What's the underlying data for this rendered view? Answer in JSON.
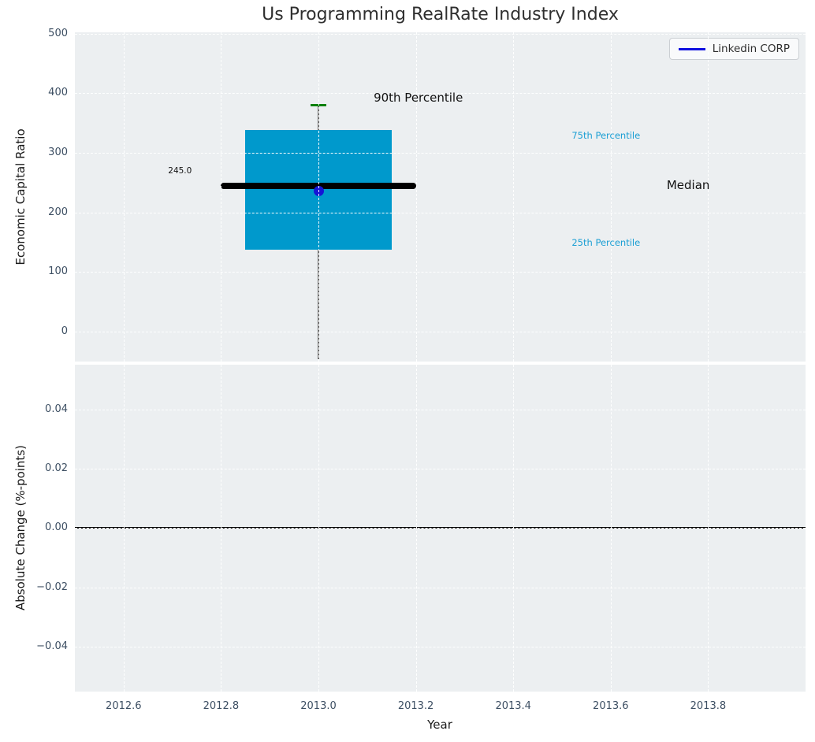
{
  "figure": {
    "background": "#ffffff",
    "plot_background": "#eceff1",
    "grid_color": "#ffffff",
    "tick_color": "#3d4f63"
  },
  "legend": {
    "label": "Linkedin CORP",
    "line_color": "#0f0fe0",
    "position": "upper-right"
  },
  "chart_data": [
    {
      "type": "boxplot",
      "panel": "top",
      "title": "Us Programming RealRate Industry Index",
      "ylabel": "Economic Capital Ratio",
      "xlabel": "",
      "xlim": [
        2012.5,
        2014.0
      ],
      "ylim": [
        -50,
        502
      ],
      "grid": "dashed-white-both-directions",
      "yticks": [
        {
          "v": 0,
          "label": "0"
        },
        {
          "v": 100,
          "label": "100"
        },
        {
          "v": 200,
          "label": "200"
        },
        {
          "v": 300,
          "label": "300"
        },
        {
          "v": 400,
          "label": "400"
        },
        {
          "v": 500,
          "label": "500"
        }
      ],
      "box": {
        "x_center": 2013.0,
        "box_x_left": 2012.85,
        "box_x_right": 2013.15,
        "q1": 138,
        "median": 245,
        "q3": 338,
        "p90": 380,
        "whisker_low_clipped": true,
        "median_line_x_left": 2012.8,
        "median_line_x_right": 2013.2,
        "cap_x_left": 2012.984,
        "cap_x_right": 2013.016,
        "box_color": "#0099cc",
        "median_color": "#000000",
        "whisker_color": "#6e6e6e",
        "cap_color": "#008000"
      },
      "company_point": {
        "label": "Linkedin CORP",
        "x": 2013.0,
        "y": 236,
        "color": "#1515d6"
      },
      "annotations": [
        {
          "name": "median-value-label",
          "text": "245.0",
          "x": 2012.74,
          "y": 270,
          "ha": "right",
          "size": "small",
          "color": "#111111"
        },
        {
          "name": "p90-label",
          "text": "90th Percentile",
          "x": 2013.205,
          "y": 393,
          "ha": "center",
          "size": "large",
          "color": "#111111"
        },
        {
          "name": "p75-label",
          "text": "75th Percentile",
          "x": 2013.52,
          "y": 329,
          "ha": "left",
          "size": "medium",
          "color": "#1b9fd4"
        },
        {
          "name": "median-label",
          "text": "Median",
          "x": 2013.715,
          "y": 246,
          "ha": "left",
          "size": "large",
          "color": "#111111"
        },
        {
          "name": "p25-label",
          "text": "25th Percentile",
          "x": 2013.52,
          "y": 150,
          "ha": "left",
          "size": "medium",
          "color": "#1b9fd4"
        }
      ],
      "legend_entries": [
        {
          "label": "Linkedin CORP",
          "color": "#0f0fe0"
        }
      ]
    },
    {
      "type": "line",
      "panel": "bottom",
      "title": "",
      "ylabel": "Absolute Change (%-points)",
      "xlabel": "Year",
      "xlim": [
        2012.5,
        2014.0
      ],
      "ylim": [
        -0.0552,
        0.0551
      ],
      "grid": "dashed-white-both-directions",
      "yticks": [
        {
          "v": 0.04,
          "label": "0.04"
        },
        {
          "v": 0.02,
          "label": "0.02"
        },
        {
          "v": 0.0,
          "label": "0.00"
        },
        {
          "v": -0.02,
          "label": "−0.02"
        },
        {
          "v": -0.04,
          "label": "−0.04"
        }
      ],
      "xticks": [
        {
          "v": 2012.6,
          "label": "2012.6"
        },
        {
          "v": 2012.8,
          "label": "2012.8"
        },
        {
          "v": 2013.0,
          "label": "2013.0"
        },
        {
          "v": 2013.2,
          "label": "2013.2"
        },
        {
          "v": 2013.4,
          "label": "2013.4"
        },
        {
          "v": 2013.6,
          "label": "2013.6"
        },
        {
          "v": 2013.8,
          "label": "2013.8"
        }
      ],
      "zero_line": {
        "y": 0.0,
        "color": "#000000"
      },
      "series": []
    }
  ]
}
